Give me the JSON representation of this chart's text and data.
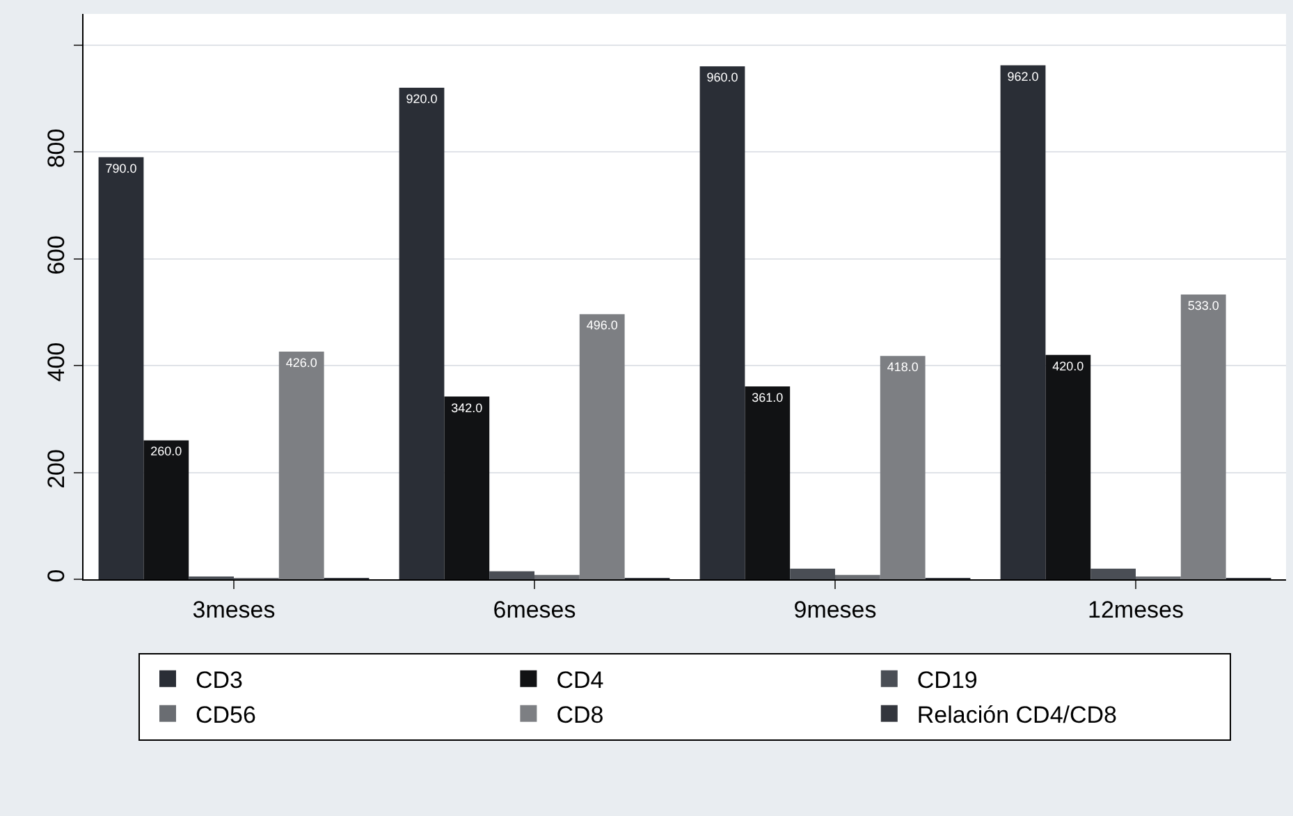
{
  "chart_data": {
    "type": "bar",
    "categories": [
      "3meses",
      "6meses",
      "9meses",
      "12meses"
    ],
    "series": [
      {
        "name": "CD3",
        "color": "#2a2e36",
        "values": [
          790,
          920,
          960,
          962
        ],
        "value_labels": [
          "790.0",
          "920.0",
          "960.0",
          "962.0"
        ]
      },
      {
        "name": "CD4",
        "color": "#111214",
        "values": [
          260,
          342,
          361,
          420
        ],
        "value_labels": [
          "260.0",
          "342.0",
          "361.0",
          "420.0"
        ]
      },
      {
        "name": "CD19",
        "color": "#4a4e55",
        "values": [
          3,
          15,
          20,
          20
        ],
        "value_labels": [
          null,
          null,
          null,
          null
        ]
      },
      {
        "name": "CD56",
        "color": "#6a6d72",
        "values": [
          1,
          8,
          8,
          5
        ],
        "value_labels": [
          null,
          null,
          null,
          null
        ]
      },
      {
        "name": "CD8",
        "color": "#7d7f83",
        "values": [
          426,
          496,
          418,
          533
        ],
        "value_labels": [
          "426.0",
          "496.0",
          "418.0",
          "533.0"
        ]
      },
      {
        "name": "Relación CD4/CD8",
        "color": "#33363d",
        "values": [
          1,
          1,
          1,
          1
        ],
        "value_labels": [
          null,
          null,
          null,
          null
        ]
      }
    ],
    "ylim": [
      0,
      1058
    ],
    "yticks": [
      0,
      200,
      400,
      600,
      800,
      {
        "value": 1000,
        "label": null
      }
    ],
    "grid": "y",
    "legend": "bottom"
  }
}
